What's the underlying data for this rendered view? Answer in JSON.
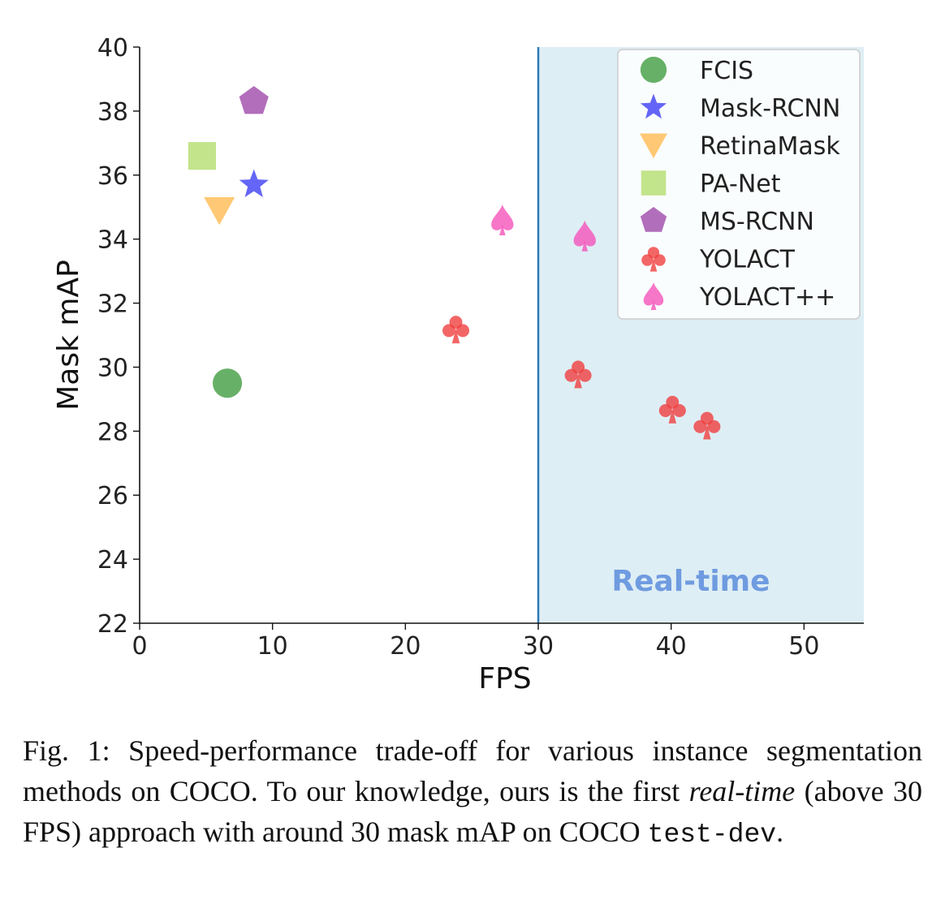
{
  "chart_data": {
    "type": "scatter",
    "title": "",
    "xlabel": "FPS",
    "ylabel": "Mask mAP",
    "xlim": [
      0,
      54.5
    ],
    "ylim": [
      22,
      40
    ],
    "xticks": [
      0,
      10,
      20,
      30,
      40,
      50
    ],
    "yticks": [
      22,
      24,
      26,
      28,
      30,
      32,
      34,
      36,
      38,
      40
    ],
    "grid": false,
    "legend_position": "top-right",
    "region": {
      "label": "Real-time",
      "x_start": 30,
      "color": "#deeef5",
      "line_color": "#2e78b7"
    },
    "series": [
      {
        "name": "FCIS",
        "marker": "circle",
        "color": "#3c9a3c",
        "points": [
          {
            "x": 6.6,
            "y": 29.5
          }
        ]
      },
      {
        "name": "Mask-RCNN",
        "marker": "star",
        "color": "#3a3af5",
        "points": [
          {
            "x": 8.6,
            "y": 35.7
          }
        ]
      },
      {
        "name": "RetinaMask",
        "marker": "triangle-down",
        "color": "#ffb84d",
        "points": [
          {
            "x": 6.0,
            "y": 34.9
          }
        ]
      },
      {
        "name": "PA-Net",
        "marker": "square",
        "color": "#b2dd6a",
        "points": [
          {
            "x": 4.7,
            "y": 36.6
          }
        ]
      },
      {
        "name": "MS-RCNN",
        "marker": "pentagon",
        "color": "#9c45a8",
        "points": [
          {
            "x": 8.6,
            "y": 38.3
          }
        ]
      },
      {
        "name": "YOLACT",
        "marker": "club",
        "color": "#f03b3b",
        "points": [
          {
            "x": 23.8,
            "y": 31.2
          },
          {
            "x": 33.0,
            "y": 29.8
          },
          {
            "x": 40.1,
            "y": 28.7
          },
          {
            "x": 42.7,
            "y": 28.2
          }
        ]
      },
      {
        "name": "YOLACT++",
        "marker": "spade",
        "color": "#f550b8",
        "points": [
          {
            "x": 27.3,
            "y": 34.6
          },
          {
            "x": 33.5,
            "y": 34.1
          }
        ]
      }
    ]
  },
  "caption": {
    "prefix": "Fig. 1: Speed-performance trade-off for various instance segmentation methods on COCO. To our knowledge, ours is the first ",
    "emphasis": "real-time",
    "middle": " (above 30 FPS) approach with around 30 mask mAP on COCO ",
    "code": "test-dev",
    "suffix": "."
  }
}
